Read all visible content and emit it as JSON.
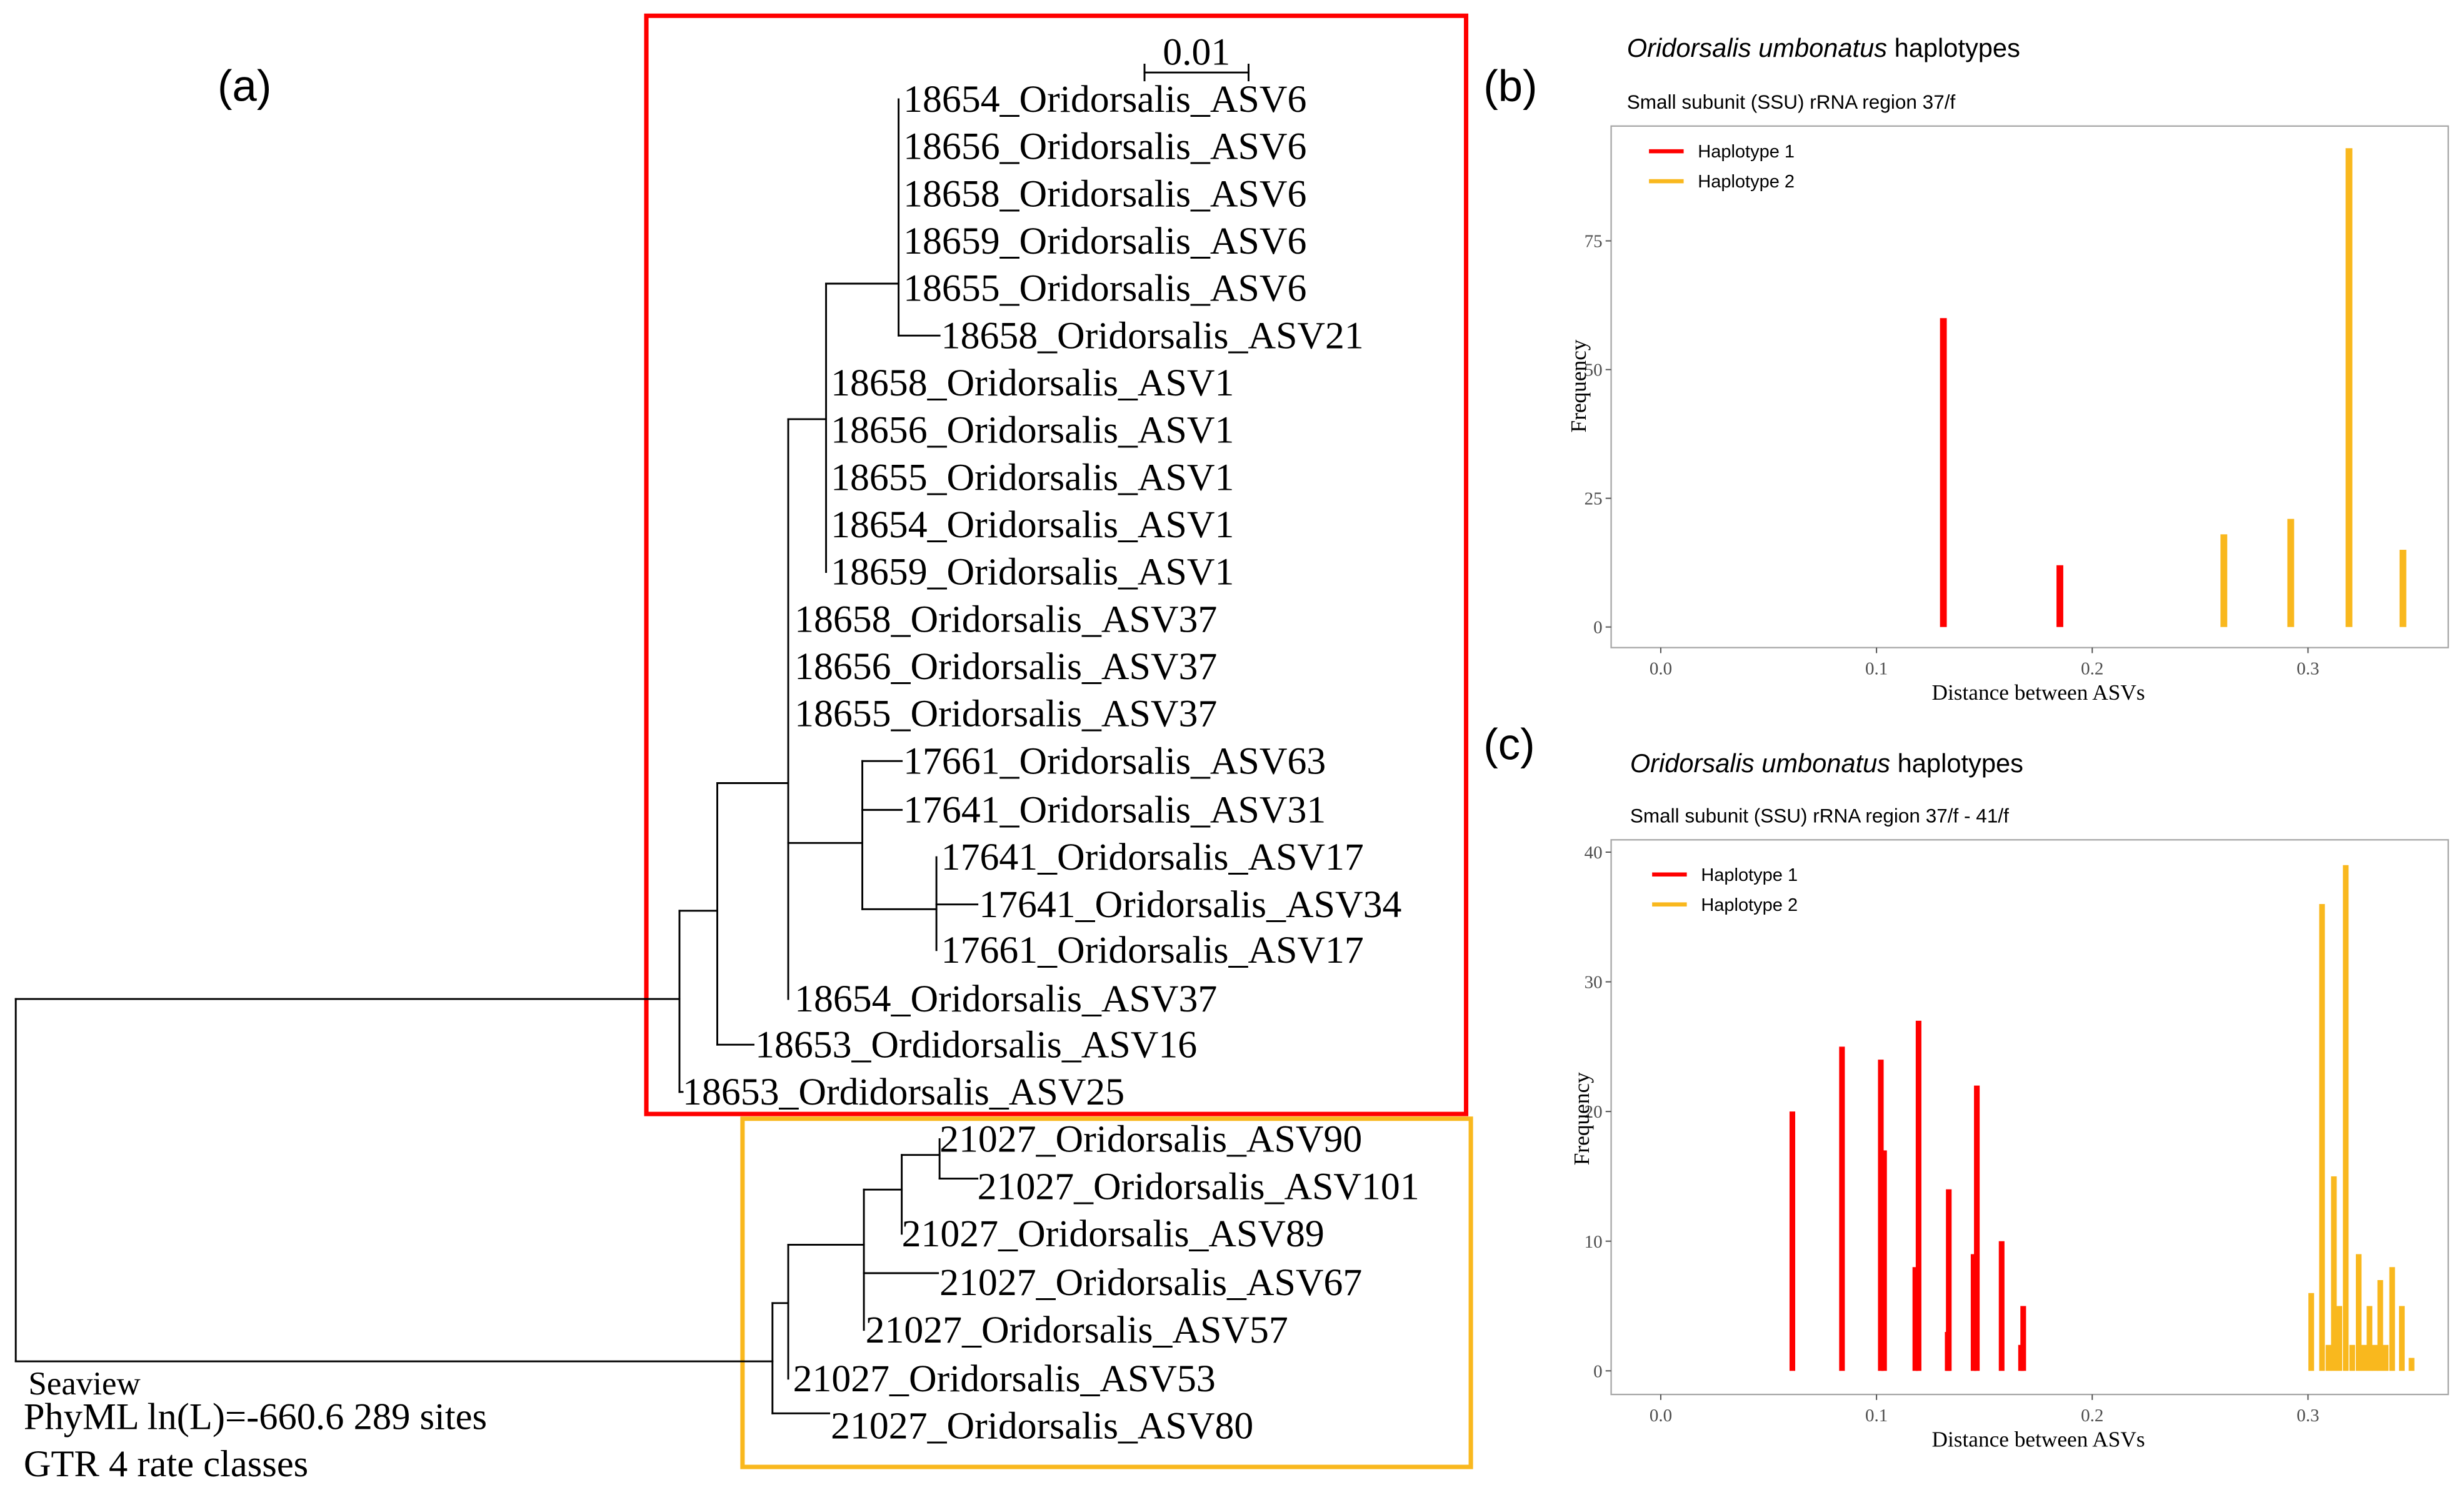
{
  "panel_a": {
    "label": "(a)",
    "scale_bar": "0.01",
    "red_clade_tips": [
      "18654_Oridorsalis_ASV6",
      "18656_Oridorsalis_ASV6",
      "18658_Oridorsalis_ASV6",
      "18659_Oridorsalis_ASV6",
      "18655_Oridorsalis_ASV6",
      "18658_Oridorsalis_ASV21",
      "18658_Oridorsalis_ASV1",
      "18656_Oridorsalis_ASV1",
      "18655_Oridorsalis_ASV1",
      "18654_Oridorsalis_ASV1",
      "18659_Oridorsalis_ASV1",
      "18658_Oridorsalis_ASV37",
      "18656_Oridorsalis_ASV37",
      "18655_Oridorsalis_ASV37",
      "17661_Oridorsalis_ASV63",
      "17641_Oridorsalis_ASV31",
      "17641_Oridorsalis_ASV17",
      "17641_Oridorsalis_ASV34",
      "17661_Oridorsalis_ASV17",
      "18654_Oridorsalis_ASV37",
      "18653_Ordidorsalis_ASV16",
      "18653_Ordidorsalis_ASV25"
    ],
    "yellow_clade_tips": [
      "21027_Oridorsalis_ASV90",
      "21027_Oridorsalis_ASV101",
      "21027_Oridorsalis_ASV89",
      "21027_Oridorsalis_ASV67",
      "21027_Oridorsalis_ASV57",
      "21027_Oridorsalis_ASV53",
      "21027_Oridorsalis_ASV80"
    ],
    "footer": {
      "program": "Seaview",
      "likelihood": "PhyML ln(L)=-660.6 289 sites",
      "model": "GTR 4 rate classes"
    },
    "colors": {
      "red_box": "#ff0000",
      "yellow_box": "#f9b81e"
    }
  },
  "chart_data": [
    {
      "panel_label": "(b)",
      "type": "bar",
      "title_italic": "Oridorsalis umbonatus",
      "title_rest": " haplotypes",
      "subtitle": "Small subunit (SSU) rRNA region 37/f",
      "xlabel": "Distance between ASVs",
      "ylabel": "Frequency",
      "xticks": [
        "0.0",
        "0.1",
        "0.2",
        "0.3"
      ],
      "yticks": [
        "0",
        "25",
        "50",
        "75"
      ],
      "xlim": [
        -0.023,
        0.365
      ],
      "ylim": [
        -4,
        97.3
      ],
      "grid": false,
      "legend": "top-left",
      "series": [
        {
          "name": "Haplotype 1",
          "color": "#ff0000",
          "x": [
            0.131,
            0.185
          ],
          "values": [
            60,
            12
          ]
        },
        {
          "name": "Haplotype 2",
          "color": "#f9b81e",
          "x": [
            0.261,
            0.292,
            0.319,
            0.344
          ],
          "values": [
            18,
            21,
            93,
            15
          ]
        }
      ]
    },
    {
      "panel_label": "(c)",
      "type": "bar",
      "title_italic": "Oridorsalis umbonatus",
      "title_rest": " haplotypes",
      "subtitle": "Small subunit (SSU) rRNA region 37/f - 41/f",
      "xlabel": "Distance between ASVs",
      "ylabel": "Frequency",
      "xticks": [
        "0.0",
        "0.1",
        "0.2",
        "0.3"
      ],
      "yticks": [
        "0",
        "10",
        "20",
        "30",
        "40"
      ],
      "xlim": [
        -0.023,
        0.365
      ],
      "ylim": [
        -1.82,
        40.95
      ],
      "grid": false,
      "legend": "top-left",
      "series": [
        {
          "name": "Haplotype 1",
          "color": "#ff0000",
          "x": [
            0.061,
            0.084,
            0.102,
            0.1035,
            0.118,
            0.1195,
            0.133,
            0.1335,
            0.145,
            0.1465,
            0.158,
            0.167,
            0.168
          ],
          "values": [
            20,
            25,
            24,
            17,
            8,
            27,
            3,
            14,
            9,
            22,
            10,
            2,
            5
          ]
        },
        {
          "name": "Haplotype 2",
          "color": "#f9b81e",
          "x": [
            0.3015,
            0.3065,
            0.3095,
            0.312,
            0.3145,
            0.3175,
            0.3205,
            0.3235,
            0.326,
            0.3285,
            0.331,
            0.3335,
            0.336,
            0.339,
            0.3435,
            0.348
          ],
          "values": [
            6,
            36,
            2,
            15,
            5,
            39,
            2,
            9,
            2,
            5,
            2,
            7,
            2,
            8,
            5,
            1
          ]
        }
      ]
    }
  ]
}
